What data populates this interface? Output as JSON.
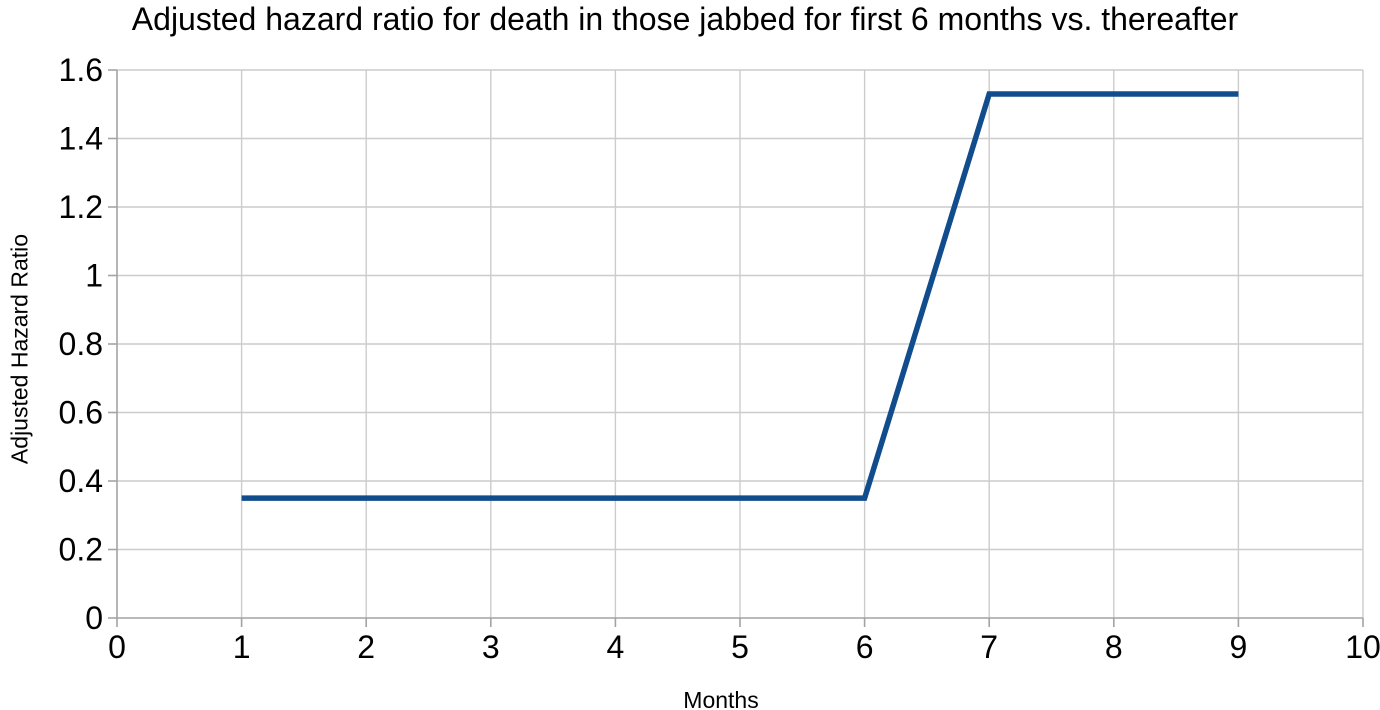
{
  "chart_data": {
    "type": "line",
    "title": "Adjusted hazard ratio for death in those jabbed for first 6 months vs. thereafter",
    "xlabel": "Months",
    "ylabel": "Adjusted Hazard Ratio",
    "xlim": [
      0,
      10
    ],
    "ylim": [
      0,
      1.6
    ],
    "x_tick_values": [
      0,
      1,
      2,
      3,
      4,
      5,
      6,
      7,
      8,
      9,
      10
    ],
    "x_tick_labels": [
      "0",
      "1",
      "2",
      "3",
      "4",
      "5",
      "6",
      "7",
      "8",
      "9",
      "10"
    ],
    "y_tick_values": [
      0,
      0.2,
      0.4,
      0.6,
      0.8,
      1,
      1.2,
      1.4,
      1.6
    ],
    "y_tick_labels": [
      "0",
      "0.2",
      "0.4",
      "0.6",
      "0.8",
      "1",
      "1.2",
      "1.4",
      "1.6"
    ],
    "grid": true,
    "legend": "none",
    "series": [
      {
        "x": [
          1,
          6,
          7,
          9
        ],
        "y": [
          0.35,
          0.35,
          1.53,
          1.53
        ],
        "color": "#114d8d",
        "stroke_width": 5.5
      }
    ],
    "colors": {
      "background": "#ffffff",
      "grid": "#cccccc",
      "axis": "#a3a3a3",
      "text": "#000000"
    }
  }
}
